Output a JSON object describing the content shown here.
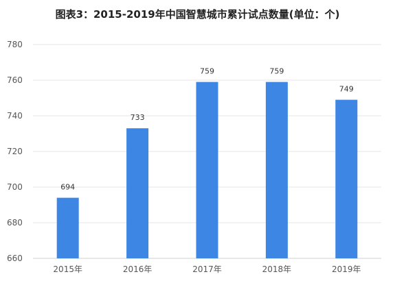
{
  "chart_data": {
    "type": "bar",
    "title": "图表3：2015-2019年中国智慧城市累计试点数量(单位：个)",
    "categories": [
      "2015年",
      "2016年",
      "2017年",
      "2018年",
      "2019年"
    ],
    "values": [
      694,
      733,
      759,
      759,
      749
    ],
    "ylim": [
      660,
      780
    ],
    "yticks": [
      660,
      680,
      700,
      720,
      740,
      760,
      780
    ],
    "xlabel": "",
    "ylabel": "",
    "grid": true,
    "bar_color": "#3d86e4"
  }
}
